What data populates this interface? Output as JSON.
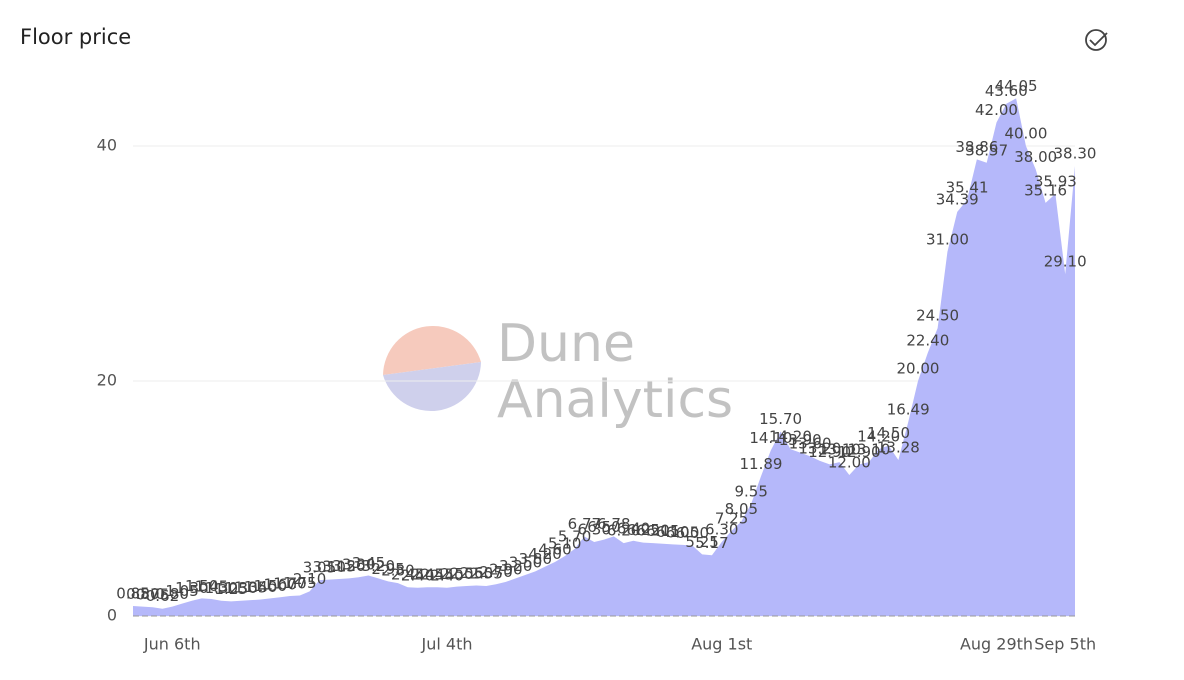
{
  "chart_data": {
    "type": "area",
    "title": "Floor price",
    "watermark": [
      "Dune",
      "Analytics"
    ],
    "color": "#b5b8fa",
    "categories": [
      null,
      null,
      null,
      null,
      "Jun 6th",
      null,
      null,
      null,
      null,
      null,
      null,
      null,
      null,
      null,
      null,
      null,
      null,
      null,
      null,
      null,
      null,
      null,
      null,
      null,
      null,
      null,
      null,
      null,
      null,
      null,
      null,
      null,
      "Jul 4th",
      null,
      null,
      null,
      null,
      null,
      null,
      null,
      null,
      null,
      null,
      null,
      null,
      null,
      null,
      null,
      null,
      null,
      null,
      null,
      null,
      null,
      null,
      null,
      null,
      null,
      null,
      null,
      "Aug 1st",
      null,
      null,
      null,
      null,
      null,
      null,
      null,
      null,
      null,
      null,
      null,
      null,
      null,
      null,
      null,
      null,
      null,
      null,
      null,
      null,
      null,
      null,
      null,
      null,
      null,
      null,
      null,
      "Aug 29th",
      null,
      null,
      null,
      null,
      null,
      null,
      "Sep 5th",
      null
    ],
    "values": [
      0.85,
      0.8,
      0.75,
      0.62,
      0.8,
      1.05,
      1.3,
      1.5,
      1.45,
      1.3,
      1.25,
      1.3,
      1.35,
      1.4,
      1.5,
      1.6,
      1.7,
      1.75,
      2.1,
      3.05,
      3.1,
      3.15,
      3.2,
      3.3,
      3.45,
      3.2,
      2.95,
      2.8,
      2.45,
      2.4,
      2.45,
      2.45,
      2.4,
      2.5,
      2.55,
      2.6,
      2.55,
      2.7,
      2.9,
      3.2,
      3.5,
      3.8,
      4.2,
      4.6,
      5.1,
      5.7,
      6.77,
      6.3,
      6.5,
      6.78,
      6.2,
      6.4,
      6.25,
      6.2,
      6.15,
      6.1,
      6.05,
      6.0,
      5.25,
      5.17,
      6.3,
      7.25,
      8.05,
      9.55,
      11.89,
      14.1,
      15.7,
      14.2,
      13.9,
      13.6,
      13.2,
      12.9,
      13.1,
      12.0,
      12.9,
      13.1,
      14.2,
      14.5,
      13.28,
      16.49,
      20.0,
      22.4,
      24.5,
      31.0,
      34.39,
      35.41,
      38.86,
      38.57,
      42.0,
      43.6,
      44.05,
      40.0,
      38.0,
      35.16,
      35.93,
      29.1,
      38.3
    ],
    "value_labels": [
      "0.85",
      "0.80",
      "0.75",
      "0.62",
      "0.80",
      "1.05",
      "1.30",
      "1.50",
      "1.45",
      "1.30",
      "1.25",
      "1.30",
      "1.35",
      "1.40",
      "1.50",
      "1.60",
      "1.70",
      "1.75",
      "2.10",
      "3.05",
      "3.10",
      "3.15",
      "3.20",
      "3.30",
      "3.45",
      "3.20",
      "2.95",
      "2.80",
      "2.45",
      "2.40",
      "2.45",
      "2.45",
      "2.40",
      "2.50",
      "2.55",
      "2.60",
      "2.55",
      "2.70",
      "2.90",
      "3.20",
      "3.50",
      "3.80",
      "4.20",
      "4.60",
      "5.10",
      "5.70",
      "6.77",
      "6.30",
      "6.50",
      "6.78",
      "6.20",
      "6.40",
      "6.25",
      "6.20",
      "6.15",
      "6.10",
      "6.05",
      "6.00",
      "5.25",
      "5.17",
      "6.30",
      "7.25",
      "8.05",
      "9.55",
      "11.89",
      "14.10",
      "15.70",
      "14.20",
      "13.90",
      "13.60",
      "13.20",
      "12.90",
      "13.10",
      "12.00",
      "12.90",
      "13.10",
      "14.20",
      "14.50",
      "13.28",
      "16.49",
      "20.00",
      "22.40",
      "24.50",
      "31.00",
      "34.39",
      "35.41",
      "38.86",
      "38.57",
      "42.00",
      "43.60",
      "44.05",
      "40.00",
      "38.00",
      "35.16",
      "35.93",
      "29.10",
      "38.30"
    ],
    "ylim": [
      0,
      46
    ],
    "yticks": [
      0,
      20,
      40
    ],
    "grid": true
  }
}
